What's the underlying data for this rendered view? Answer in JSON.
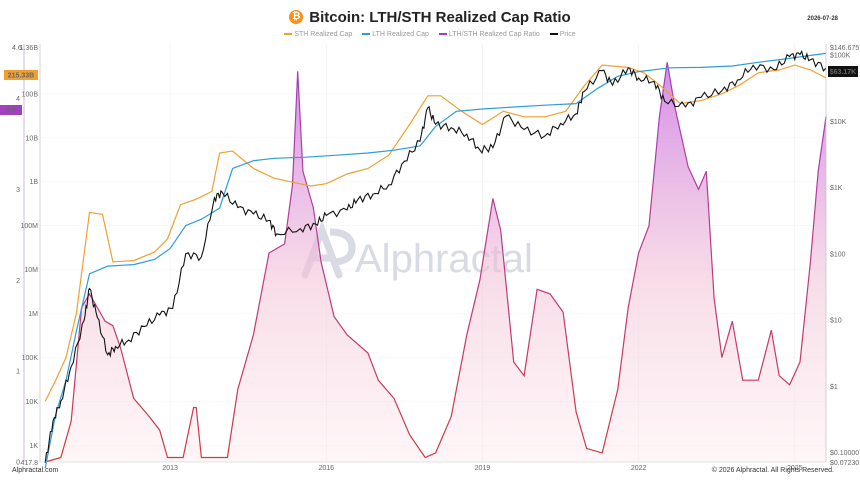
{
  "header": {
    "title": "Bitcoin: LTH/STH Realized Cap Ratio",
    "date": "2026-07-28"
  },
  "legend": [
    {
      "label": "STH Realized Cap",
      "color": "#f0a030"
    },
    {
      "label": "LTH Realized Cap",
      "color": "#2d9cdb"
    },
    {
      "label": "LTH/STH Realized Cap Ratio",
      "color": "#a040c0"
    },
    {
      "label": "Price",
      "color": "#111111"
    }
  ],
  "watermark": "Alphractal",
  "footer": {
    "left": "Alphractal.com",
    "right": "© 2026 Alphractal. All Rights Reserved."
  },
  "colors": {
    "sth": "#f0a030",
    "lth": "#2d9cdb",
    "ratio": "#a040c0",
    "price": "#111111",
    "ratio_fill_top": "#c768e0",
    "ratio_fill_bottom": "#fde7ec",
    "ratio_line_low": "#d03a3a"
  },
  "chart_data": {
    "type": "line",
    "title": "Bitcoin: LTH/STH Realized Cap Ratio",
    "x_ticks": [
      "2013",
      "2016",
      "2019",
      "2022",
      "2025"
    ],
    "x_range": [
      2010.5,
      2025.6
    ],
    "cap_axis": {
      "ticks": [
        "1K",
        "10K",
        "100K",
        "1M",
        "10M",
        "100M",
        "1B",
        "10B",
        "100B"
      ],
      "top_label": "1.36B",
      "bottom_label": "417.8",
      "marker": "215.33B",
      "scale": "log"
    },
    "ratio_axis": {
      "ticks": [
        "0",
        "1",
        "2",
        "3",
        "4"
      ],
      "top_label": "4.6",
      "range": [
        0,
        4.6
      ],
      "marker": "3.8"
    },
    "price_axis": {
      "ticks": [
        "$0.10000",
        "$1",
        "$10",
        "$100",
        "$1K",
        "$10K",
        "$100K"
      ],
      "top_label": "$146.675",
      "bottom_label": "$0.07230",
      "marker": "$63.17K",
      "scale": "log"
    },
    "series": [
      {
        "name": "STH Realized Cap",
        "unit": "USD",
        "points": [
          [
            2010.6,
            10000.0
          ],
          [
            2010.8,
            30000.0
          ],
          [
            2011.0,
            100000.0
          ],
          [
            2011.2,
            1000000.0
          ],
          [
            2011.45,
            200000000.0
          ],
          [
            2011.7,
            180000000.0
          ],
          [
            2011.9,
            15000000.0
          ],
          [
            2012.3,
            16000000.0
          ],
          [
            2012.7,
            25000000.0
          ],
          [
            2012.95,
            50000000.0
          ],
          [
            2013.2,
            300000000.0
          ],
          [
            2013.5,
            400000000.0
          ],
          [
            2013.8,
            600000000.0
          ],
          [
            2013.95,
            4500000000.0
          ],
          [
            2014.2,
            5000000000.0
          ],
          [
            2014.6,
            2000000000.0
          ],
          [
            2015.0,
            1200000000.0
          ],
          [
            2015.3,
            1000000000.0
          ],
          [
            2015.7,
            800000000.0
          ],
          [
            2016.0,
            900000000.0
          ],
          [
            2016.4,
            1500000000.0
          ],
          [
            2016.8,
            2000000000.0
          ],
          [
            2017.2,
            4000000000.0
          ],
          [
            2017.6,
            20000000000.0
          ],
          [
            2017.95,
            90000000000.0
          ],
          [
            2018.2,
            90000000000.0
          ],
          [
            2018.6,
            40000000000.0
          ],
          [
            2019.0,
            20000000000.0
          ],
          [
            2019.4,
            40000000000.0
          ],
          [
            2019.8,
            30000000000.0
          ],
          [
            2020.2,
            30000000000.0
          ],
          [
            2020.6,
            40000000000.0
          ],
          [
            2020.95,
            150000000000.0
          ],
          [
            2021.3,
            450000000000.0
          ],
          [
            2021.8,
            400000000000.0
          ],
          [
            2022.1,
            300000000000.0
          ],
          [
            2022.4,
            160000000000.0
          ],
          [
            2022.8,
            60000000000.0
          ],
          [
            2023.2,
            70000000000.0
          ],
          [
            2023.6,
            100000000000.0
          ],
          [
            2023.95,
            160000000000.0
          ],
          [
            2024.3,
            300000000000.0
          ],
          [
            2024.7,
            350000000000.0
          ],
          [
            2025.0,
            450000000000.0
          ],
          [
            2025.3,
            350000000000.0
          ],
          [
            2025.6,
            230000000000.0
          ]
        ]
      },
      {
        "name": "LTH Realized Cap",
        "unit": "USD",
        "points": [
          [
            2010.6,
            300.0
          ],
          [
            2010.8,
            5000.0
          ],
          [
            2011.0,
            30000.0
          ],
          [
            2011.2,
            400000.0
          ],
          [
            2011.45,
            8000000.0
          ],
          [
            2011.8,
            12000000.0
          ],
          [
            2012.3,
            13000000.0
          ],
          [
            2012.7,
            17000000.0
          ],
          [
            2013.0,
            30000000.0
          ],
          [
            2013.3,
            100000000.0
          ],
          [
            2013.6,
            140000000.0
          ],
          [
            2013.95,
            250000000.0
          ],
          [
            2014.2,
            2000000000.0
          ],
          [
            2014.6,
            3000000000.0
          ],
          [
            2015.0,
            3400000000.0
          ],
          [
            2015.6,
            3600000000.0
          ],
          [
            2016.2,
            4000000000.0
          ],
          [
            2016.8,
            4500000000.0
          ],
          [
            2017.3,
            5200000000.0
          ],
          [
            2017.8,
            6500000000.0
          ],
          [
            2018.1,
            18000000000.0
          ],
          [
            2018.5,
            40000000000.0
          ],
          [
            2019.0,
            45000000000.0
          ],
          [
            2019.6,
            50000000000.0
          ],
          [
            2020.2,
            55000000000.0
          ],
          [
            2020.8,
            60000000000.0
          ],
          [
            2021.2,
            130000000000.0
          ],
          [
            2021.6,
            250000000000.0
          ],
          [
            2022.0,
            320000000000.0
          ],
          [
            2022.6,
            390000000000.0
          ],
          [
            2023.2,
            400000000000.0
          ],
          [
            2023.8,
            430000000000.0
          ],
          [
            2024.3,
            520000000000.0
          ],
          [
            2024.8,
            620000000000.0
          ],
          [
            2025.2,
            720000000000.0
          ],
          [
            2025.6,
            830000000000.0
          ]
        ]
      },
      {
        "name": "LTH/STH Realized Cap Ratio",
        "unit": "ratio",
        "points": [
          [
            2010.6,
            0
          ],
          [
            2010.9,
            0.05
          ],
          [
            2011.1,
            0.45
          ],
          [
            2011.3,
            1.7
          ],
          [
            2011.45,
            1.85
          ],
          [
            2011.6,
            1.7
          ],
          [
            2011.75,
            1.55
          ],
          [
            2011.9,
            1.5
          ],
          [
            2012.05,
            1.25
          ],
          [
            2012.3,
            0.7
          ],
          [
            2012.6,
            0.5
          ],
          [
            2012.8,
            0.35
          ],
          [
            2012.95,
            0.05
          ],
          [
            2013.1,
            0.05
          ],
          [
            2013.25,
            0.05
          ],
          [
            2013.45,
            0.6
          ],
          [
            2013.5,
            0.6
          ],
          [
            2013.6,
            0.05
          ],
          [
            2013.75,
            0.05
          ],
          [
            2013.9,
            0.05
          ],
          [
            2014.1,
            0.05
          ],
          [
            2014.3,
            0.8
          ],
          [
            2014.6,
            1.4
          ],
          [
            2014.9,
            2.3
          ],
          [
            2015.2,
            2.4
          ],
          [
            2015.35,
            3.05
          ],
          [
            2015.45,
            4.3
          ],
          [
            2015.55,
            3.2
          ],
          [
            2015.75,
            2.8
          ],
          [
            2015.9,
            2.2
          ],
          [
            2016.15,
            1.6
          ],
          [
            2016.4,
            1.4
          ],
          [
            2016.8,
            1.2
          ],
          [
            2017.0,
            0.9
          ],
          [
            2017.3,
            0.7
          ],
          [
            2017.6,
            0.3
          ],
          [
            2017.9,
            0.05
          ],
          [
            2018.1,
            0.1
          ],
          [
            2018.4,
            0.5
          ],
          [
            2018.7,
            1.4
          ],
          [
            2018.95,
            2.0
          ],
          [
            2019.2,
            2.9
          ],
          [
            2019.35,
            2.55
          ],
          [
            2019.6,
            1.1
          ],
          [
            2019.8,
            0.95
          ],
          [
            2020.05,
            1.9
          ],
          [
            2020.3,
            1.85
          ],
          [
            2020.55,
            1.65
          ],
          [
            2020.8,
            0.55
          ],
          [
            2021.0,
            0.15
          ],
          [
            2021.3,
            0.1
          ],
          [
            2021.6,
            0.8
          ],
          [
            2021.8,
            1.7
          ],
          [
            2022.0,
            2.3
          ],
          [
            2022.2,
            2.6
          ],
          [
            2022.4,
            3.8
          ],
          [
            2022.55,
            4.4
          ],
          [
            2022.7,
            3.9
          ],
          [
            2022.95,
            3.25
          ],
          [
            2023.15,
            3.0
          ],
          [
            2023.3,
            3.2
          ],
          [
            2023.45,
            1.8
          ],
          [
            2023.6,
            1.15
          ],
          [
            2023.8,
            1.55
          ],
          [
            2024.0,
            0.9
          ],
          [
            2024.3,
            0.9
          ],
          [
            2024.55,
            1.45
          ],
          [
            2024.7,
            0.95
          ],
          [
            2024.9,
            0.85
          ],
          [
            2025.1,
            1.1
          ],
          [
            2025.3,
            2.2
          ],
          [
            2025.45,
            3.2
          ],
          [
            2025.6,
            3.8
          ]
        ]
      },
      {
        "name": "Price",
        "unit": "USD",
        "points": [
          [
            2010.6,
            0.07
          ],
          [
            2010.75,
            0.3
          ],
          [
            2010.9,
            0.6
          ],
          [
            2011.1,
            2
          ],
          [
            2011.35,
            10
          ],
          [
            2011.45,
            30
          ],
          [
            2011.6,
            11
          ],
          [
            2011.8,
            3
          ],
          [
            2011.95,
            4
          ],
          [
            2012.2,
            5
          ],
          [
            2012.5,
            8
          ],
          [
            2012.8,
            12
          ],
          [
            2013.05,
            15
          ],
          [
            2013.3,
            100
          ],
          [
            2013.6,
            90
          ],
          [
            2013.85,
            700
          ],
          [
            2014.0,
            850
          ],
          [
            2014.3,
            500
          ],
          [
            2014.6,
            400
          ],
          [
            2014.9,
            320
          ],
          [
            2015.05,
            200
          ],
          [
            2015.5,
            240
          ],
          [
            2015.8,
            280
          ],
          [
            2016.0,
            380
          ],
          [
            2016.4,
            460
          ],
          [
            2016.6,
            650
          ],
          [
            2016.9,
            800
          ],
          [
            2017.2,
            1100
          ],
          [
            2017.5,
            2500
          ],
          [
            2017.8,
            5000
          ],
          [
            2017.95,
            16000
          ],
          [
            2018.1,
            9000
          ],
          [
            2018.4,
            8000
          ],
          [
            2018.7,
            6400
          ],
          [
            2018.95,
            3700
          ],
          [
            2019.2,
            4000
          ],
          [
            2019.45,
            12000
          ],
          [
            2019.8,
            7500
          ],
          [
            2020.2,
            6000
          ],
          [
            2020.5,
            9300
          ],
          [
            2020.8,
            13000
          ],
          [
            2020.95,
            28000
          ],
          [
            2021.3,
            58000
          ],
          [
            2021.5,
            35000
          ],
          [
            2021.8,
            64000
          ],
          [
            2022.0,
            45000
          ],
          [
            2022.3,
            40000
          ],
          [
            2022.5,
            20000
          ],
          [
            2022.9,
            16500
          ],
          [
            2023.2,
            23000
          ],
          [
            2023.6,
            29000
          ],
          [
            2023.9,
            42000
          ],
          [
            2024.2,
            70000
          ],
          [
            2024.6,
            60000
          ],
          [
            2024.9,
            95000
          ],
          [
            2025.1,
            102000
          ],
          [
            2025.3,
            85000
          ],
          [
            2025.6,
            63170
          ]
        ]
      }
    ]
  }
}
